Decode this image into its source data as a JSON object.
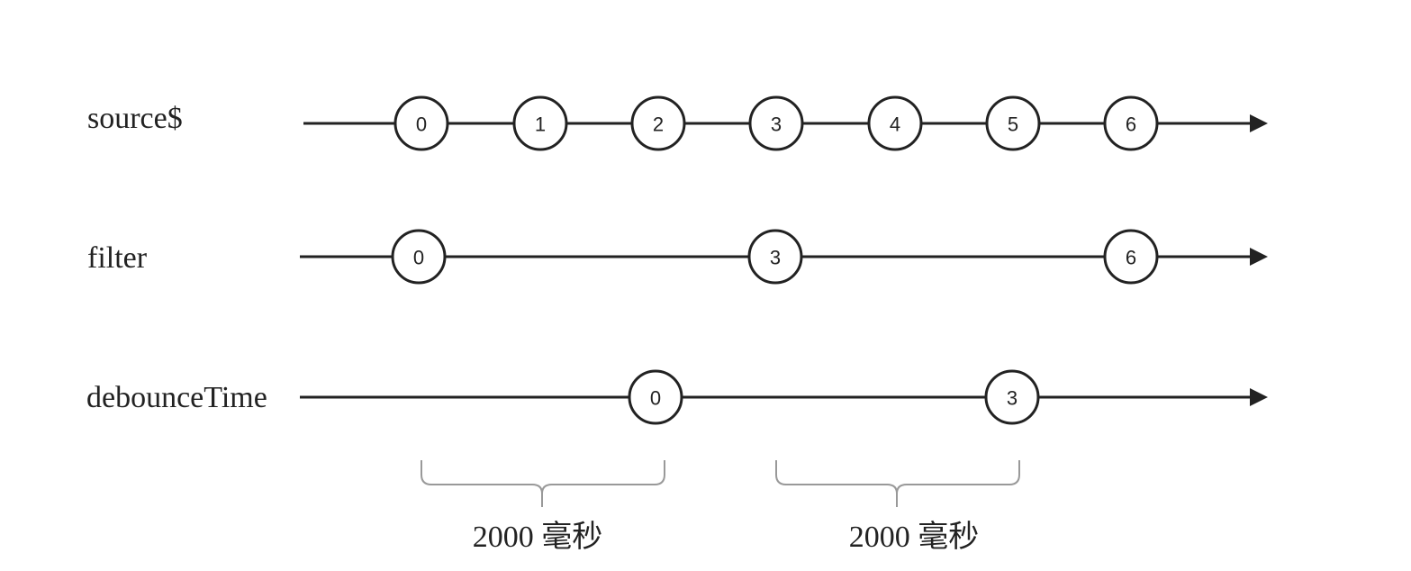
{
  "rows": [
    {
      "label": "source$",
      "marbles": [
        "0",
        "1",
        "2",
        "3",
        "4",
        "5",
        "6"
      ]
    },
    {
      "label": "filter",
      "marbles": [
        "0",
        "3",
        "6"
      ]
    },
    {
      "label": "debounceTime",
      "marbles": [
        "0",
        "3"
      ]
    }
  ],
  "brackets": [
    {
      "label": "2000 毫秒"
    },
    {
      "label": "2000 毫秒"
    }
  ],
  "colors": {
    "line": "#222222",
    "bracket": "#999999"
  }
}
